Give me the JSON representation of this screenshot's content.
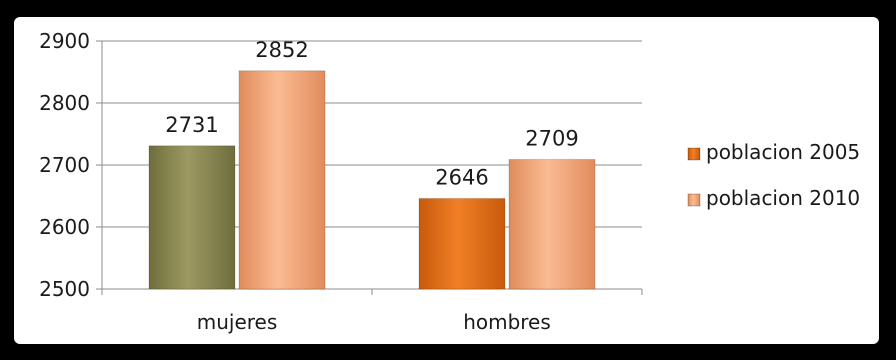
{
  "chart_data": {
    "type": "bar",
    "categories": [
      "mujeres",
      "hombres"
    ],
    "series": [
      {
        "name": "poblacion 2005",
        "values": [
          2731,
          2646
        ],
        "colors": [
          "#8c8a56",
          "#e0701a"
        ]
      },
      {
        "name": "poblacion 2010",
        "values": [
          2852,
          2709
        ],
        "colors": [
          "#f2a77a",
          "#f2a77a"
        ]
      }
    ],
    "data_labels": [
      "2731",
      "2646",
      "2852",
      "2709"
    ],
    "ylim": [
      2500,
      2900
    ],
    "yticks": [
      "2500",
      "2600",
      "2700",
      "2800",
      "2900"
    ],
    "title": "",
    "xlabel": "",
    "ylabel": "",
    "grid": true,
    "legend_position": "right"
  }
}
